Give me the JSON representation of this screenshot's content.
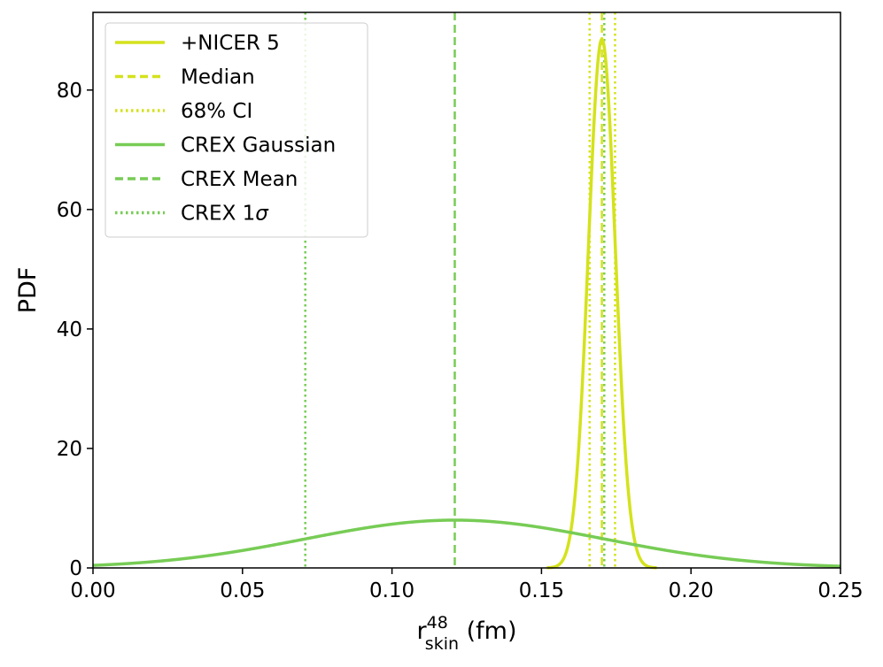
{
  "chart_data": {
    "type": "line",
    "xlabel": {
      "main": "r",
      "sup": "48",
      "sub": "skin",
      "unit": " (fm)"
    },
    "ylabel": "PDF",
    "xlim": [
      0.0,
      0.25
    ],
    "ylim": [
      0,
      93
    ],
    "xticks": [
      0.0,
      0.05,
      0.1,
      0.15,
      0.2,
      0.25
    ],
    "xtick_labels": [
      "0.00",
      "0.05",
      "0.10",
      "0.15",
      "0.20",
      "0.25"
    ],
    "yticks": [
      0,
      20,
      40,
      60,
      80
    ],
    "ytick_labels": [
      "0",
      "20",
      "40",
      "60",
      "80"
    ],
    "grid": false,
    "legend_position": "top-left",
    "colors": {
      "nicer": "#d4e21c",
      "crex": "#77cc55"
    },
    "series": [
      {
        "name": "+NICER 5",
        "kind": "gaussian-curve",
        "mean": 0.1702,
        "sigma": 0.0045,
        "peak": 88.5,
        "color": "#d4e21c"
      },
      {
        "name": "CREX Gaussian",
        "kind": "gaussian-curve",
        "mean": 0.121,
        "sigma": 0.05,
        "peak": 8.0,
        "color": "#77cc55"
      }
    ],
    "vlines": [
      {
        "name": "Median",
        "x": 0.1702,
        "style": "dashed",
        "color": "#d4e21c"
      },
      {
        "name": "68% CI",
        "x": [
          0.1661,
          0.1746
        ],
        "style": "dotted",
        "color": "#d4e21c"
      },
      {
        "name": "CREX Mean",
        "x": 0.121,
        "style": "dashed",
        "color": "#77cc55"
      },
      {
        "name": "CREX 1σ",
        "x": [
          0.071,
          0.171
        ],
        "style": "dotted",
        "color": "#77cc55"
      }
    ],
    "legend": [
      {
        "label": "+NICER 5",
        "style": "solid",
        "color": "#d4e21c"
      },
      {
        "label": "Median",
        "style": "dashed",
        "color": "#d4e21c"
      },
      {
        "label": "68% CI",
        "style": "dotted",
        "color": "#d4e21c"
      },
      {
        "label": "CREX Gaussian",
        "style": "solid",
        "color": "#77cc55"
      },
      {
        "label": "CREX Mean",
        "style": "dashed",
        "color": "#77cc55"
      },
      {
        "label": "CREX 1",
        "sigma": "σ",
        "style": "dotted",
        "color": "#77cc55"
      }
    ]
  }
}
